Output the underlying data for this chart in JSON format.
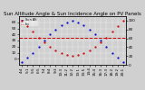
{
  "title": "Sun Altitude Angle & Sun Incidence Angle on PV Panels",
  "background_color": "#d0d0d0",
  "plot_bg_color": "#d0d0d0",
  "grid_color": "#ffffff",
  "x_ticks": [
    "4:4",
    "5:1",
    "5:5",
    "6:5",
    "7:4",
    "8:4",
    "9:3",
    "10:3",
    "11:2",
    "12:2",
    "13:1",
    "13:5",
    "14:4",
    "15:4",
    "16:3",
    "17:3",
    "18:2",
    "19:2",
    "20:1"
  ],
  "ylim_left": [
    -10,
    70
  ],
  "ylim_right": [
    0,
    110
  ],
  "yticks_left": [
    0,
    10,
    20,
    30,
    40,
    50,
    60
  ],
  "yticks_right": [
    0,
    20,
    40,
    60,
    80,
    100
  ],
  "altitude_x": [
    0,
    1,
    2,
    3,
    4,
    5,
    6,
    7,
    8,
    9,
    10,
    11,
    12,
    13,
    14,
    15,
    16,
    17,
    18
  ],
  "altitude_y": [
    -5,
    2,
    10,
    20,
    30,
    40,
    48,
    55,
    60,
    62,
    60,
    55,
    48,
    40,
    30,
    20,
    10,
    2,
    -5
  ],
  "incidence_x": [
    0,
    1,
    2,
    3,
    4,
    5,
    6,
    7,
    8,
    9,
    10,
    11,
    12,
    13,
    14,
    15,
    16,
    17,
    18
  ],
  "incidence_y": [
    100,
    88,
    75,
    62,
    50,
    40,
    32,
    26,
    22,
    20,
    22,
    26,
    32,
    40,
    50,
    62,
    75,
    88,
    100
  ],
  "hline_y": 35,
  "hline_color": "#cc0000",
  "hline_style": "--",
  "altitude_color": "#0000cc",
  "incidence_color": "#cc0000",
  "title_fontsize": 4,
  "tick_fontsize": 3,
  "marker_size": 1.2,
  "legend_items": [
    {
      "label": "Sun Alt°",
      "color": "#0000cc",
      "ls": "--"
    },
    {
      "label": "Inc°",
      "color": "#cc0000",
      "ls": ".."
    }
  ]
}
